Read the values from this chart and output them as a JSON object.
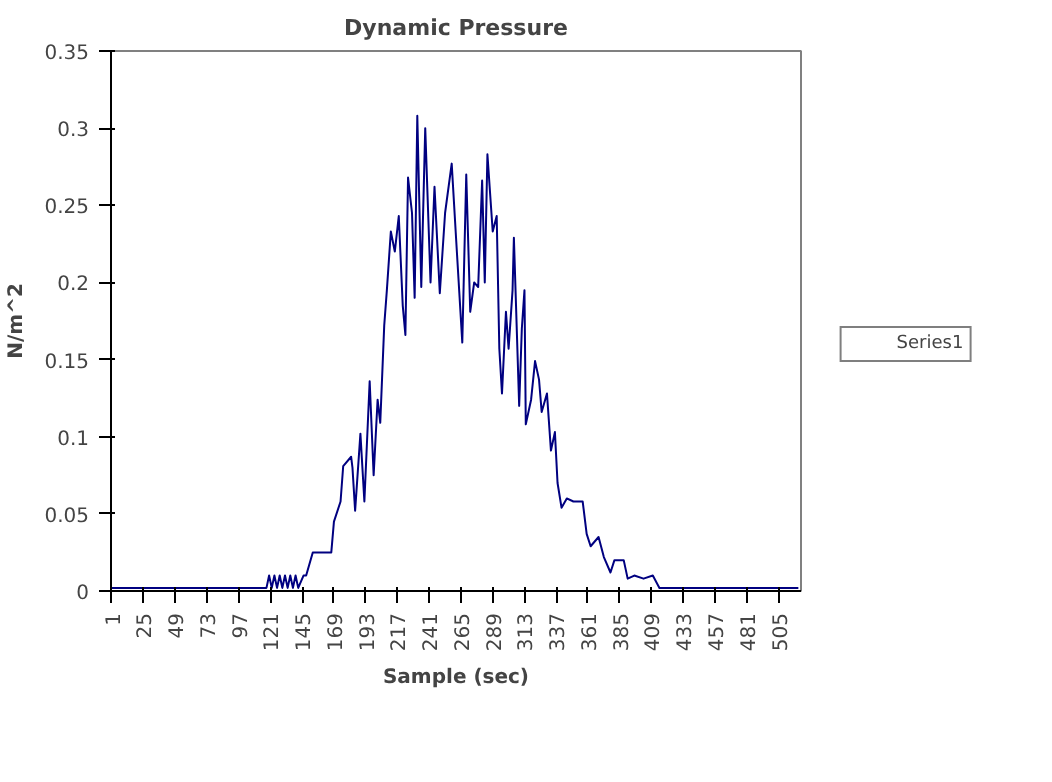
{
  "chart_data": {
    "type": "line",
    "title": "Dynamic Pressure",
    "xlabel": "Sample (sec)",
    "ylabel": "N/m^2",
    "xlim": [
      0.5,
      522
    ],
    "xticks": [
      1,
      25,
      49,
      73,
      97,
      121,
      145,
      169,
      193,
      217,
      241,
      265,
      289,
      313,
      337,
      361,
      385,
      409,
      433,
      457,
      481,
      505
    ],
    "ylim": [
      0,
      0.35
    ],
    "yticks": [
      0,
      0.05,
      0.1,
      0.15,
      0.2,
      0.25,
      0.3,
      0.35
    ],
    "grid": false,
    "legend": "right",
    "marker": "none",
    "line_style": "solid",
    "series": [
      {
        "name": "Series1",
        "color": "#000080",
        "x": [
          1,
          100,
          118,
          120,
          122,
          124,
          126,
          128,
          130,
          132,
          134,
          136,
          138,
          140,
          142,
          146,
          148,
          153,
          160,
          167,
          169,
          174,
          176,
          182,
          183,
          185,
          189,
          192,
          196,
          199,
          202,
          204,
          207,
          209,
          212,
          215,
          218,
          221,
          223,
          225,
          228,
          230,
          232,
          235,
          238,
          242,
          245,
          249,
          253,
          258,
          261,
          266,
          269,
          272,
          275,
          278,
          281,
          283,
          285,
          289,
          292,
          294,
          296,
          299,
          301,
          304,
          305,
          309,
          311,
          313,
          314,
          318,
          321,
          324,
          326,
          330,
          333,
          336,
          338,
          341,
          345,
          350,
          357,
          360,
          363,
          369,
          373,
          378,
          381,
          388,
          391,
          396,
          403,
          410,
          415,
          520
        ],
        "values": [
          0.002,
          0.002,
          0.002,
          0.01,
          0.002,
          0.01,
          0.002,
          0.01,
          0.002,
          0.01,
          0.002,
          0.01,
          0.002,
          0.01,
          0.002,
          0.01,
          0.01,
          0.025,
          0.025,
          0.025,
          0.045,
          0.058,
          0.081,
          0.087,
          0.08,
          0.052,
          0.102,
          0.058,
          0.136,
          0.075,
          0.124,
          0.109,
          0.172,
          0.195,
          0.233,
          0.22,
          0.243,
          0.185,
          0.166,
          0.268,
          0.245,
          0.19,
          0.308,
          0.197,
          0.3,
          0.2,
          0.262,
          0.193,
          0.245,
          0.277,
          0.233,
          0.161,
          0.27,
          0.181,
          0.2,
          0.197,
          0.266,
          0.2,
          0.283,
          0.233,
          0.243,
          0.157,
          0.128,
          0.181,
          0.157,
          0.195,
          0.229,
          0.12,
          0.17,
          0.195,
          0.108,
          0.124,
          0.149,
          0.137,
          0.116,
          0.128,
          0.091,
          0.103,
          0.07,
          0.054,
          0.06,
          0.058,
          0.058,
          0.037,
          0.029,
          0.035,
          0.022,
          0.012,
          0.02,
          0.02,
          0.008,
          0.01,
          0.008,
          0.01,
          0.002,
          0.002
        ]
      }
    ]
  }
}
